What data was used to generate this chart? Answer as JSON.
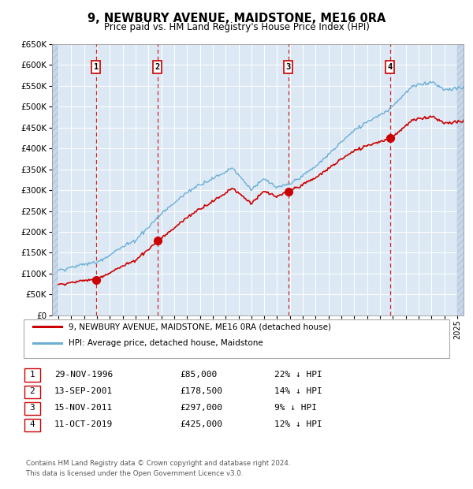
{
  "title": "9, NEWBURY AVENUE, MAIDSTONE, ME16 0RA",
  "subtitle": "Price paid vs. HM Land Registry's House Price Index (HPI)",
  "ylim": [
    0,
    650000
  ],
  "yticks": [
    0,
    50000,
    100000,
    150000,
    200000,
    250000,
    300000,
    350000,
    400000,
    450000,
    500000,
    550000,
    600000,
    650000
  ],
  "background_color": "#ffffff",
  "plot_bg_color": "#dce9f5",
  "hatched_bg_color": "#c8d8ea",
  "grid_color": "#ffffff",
  "purchases": [
    {
      "label": "1",
      "date": "29-NOV-1996",
      "price": 85000,
      "pct": "22%",
      "x_year": 1996.91
    },
    {
      "label": "2",
      "date": "13-SEP-2001",
      "price": 178500,
      "pct": "14%",
      "x_year": 2001.7
    },
    {
      "label": "3",
      "date": "15-NOV-2011",
      "price": 297000,
      "pct": "9%",
      "x_year": 2011.87
    },
    {
      "label": "4",
      "date": "11-OCT-2019",
      "price": 425000,
      "pct": "12%",
      "x_year": 2019.78
    }
  ],
  "hpi_line_color": "#6baed6",
  "price_line_color": "#cc0000",
  "purchase_marker_color": "#cc0000",
  "dashed_line_color": "#cc0000",
  "legend_line1": "9, NEWBURY AVENUE, MAIDSTONE, ME16 0RA (detached house)",
  "legend_line2": "HPI: Average price, detached house, Maidstone",
  "footer1": "Contains HM Land Registry data © Crown copyright and database right 2024.",
  "footer2": "This data is licensed under the Open Government Licence v3.0.",
  "xmin": 1993.5,
  "xmax": 2025.5,
  "hatch_left_end": 1994.0,
  "hatch_right_start": 2025.0,
  "table_rows": [
    [
      "1",
      "29-NOV-1996",
      "£85,000",
      "22% ↓ HPI"
    ],
    [
      "2",
      "13-SEP-2001",
      "£178,500",
      "14% ↓ HPI"
    ],
    [
      "3",
      "15-NOV-2011",
      "£297,000",
      "9% ↓ HPI"
    ],
    [
      "4",
      "11-OCT-2019",
      "£425,000",
      "12% ↓ HPI"
    ]
  ]
}
